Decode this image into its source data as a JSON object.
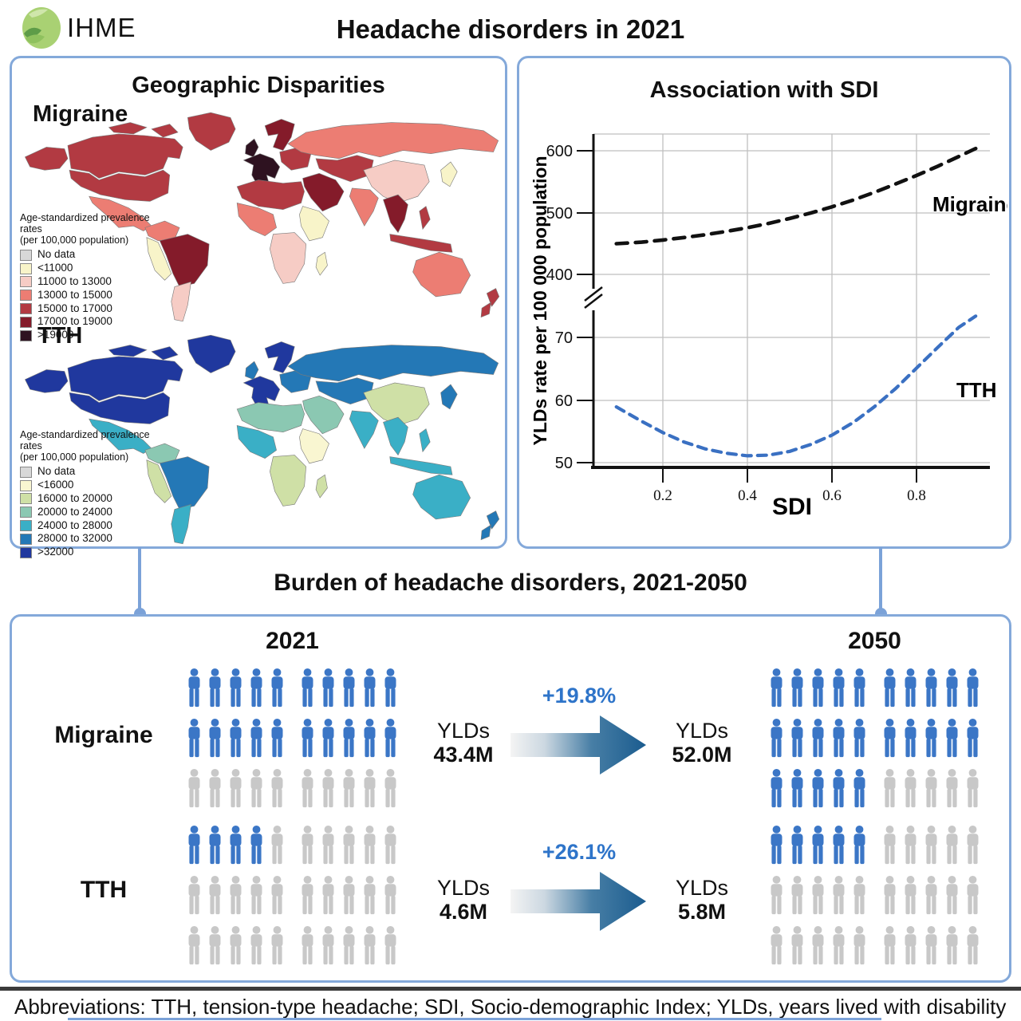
{
  "header": {
    "logo_text": "IHME",
    "title": "Headache disorders in 2021"
  },
  "geo_panel": {
    "title": "Geographic Disparities",
    "migraine": {
      "label": "Migraine",
      "legend_title_line1": "Age-standardized prevalence rates",
      "legend_title_line2": "(per 100,000 population)",
      "legend": [
        {
          "label": "No data",
          "color": "#d8d8d8"
        },
        {
          "label": "<11000",
          "color": "#f8f4c9"
        },
        {
          "label": "11000 to 13000",
          "color": "#f6ccc5"
        },
        {
          "label": "13000 to 15000",
          "color": "#ec7d73"
        },
        {
          "label": "15000 to 17000",
          "color": "#b23a42"
        },
        {
          "label": "17000 to 19000",
          "color": "#841b2a"
        },
        {
          "label": ">19000",
          "color": "#2e1220"
        }
      ],
      "fills": {
        "alaska": "#b23a42",
        "canada": "#b23a42",
        "greenland": "#b23a42",
        "usa": "#b23a42",
        "mexico": "#ec7d73",
        "colombia": "#ec7d73",
        "peru": "#f8f4c9",
        "brazil": "#841b2a",
        "argentina": "#f6ccc5",
        "uk": "#2e1220",
        "west_europe": "#2e1220",
        "nordic": "#841b2a",
        "east_europe": "#b23a42",
        "russia": "#ec7d73",
        "central_asia": "#b23a42",
        "middle_east": "#841b2a",
        "north_africa": "#b23a42",
        "west_africa": "#ec7d73",
        "east_africa": "#f8f4c9",
        "south_africa": "#f6ccc5",
        "madagascar": "#f8f4c9",
        "china": "#f6ccc5",
        "india": "#ec7d73",
        "se_asia": "#841b2a",
        "indonesia": "#b23a42",
        "japan": "#f8f4c9",
        "australia": "#ec7d73",
        "new_zealand": "#b23a42"
      }
    },
    "tth": {
      "label": "TTH",
      "legend_title_line1": "Age-standardized prevalence rates",
      "legend_title_line2": "(per 100,000 population)",
      "legend": [
        {
          "label": "No data",
          "color": "#d8d8d8"
        },
        {
          "label": "<16000",
          "color": "#f9f6d1"
        },
        {
          "label": "16000 to 20000",
          "color": "#cfe0a6"
        },
        {
          "label": "20000 to 24000",
          "color": "#8bc8b2"
        },
        {
          "label": "24000 to 28000",
          "color": "#3aafc6"
        },
        {
          "label": "28000 to 32000",
          "color": "#2478b6"
        },
        {
          "label": ">32000",
          "color": "#20389e"
        }
      ],
      "fills": {
        "alaska": "#20389e",
        "canada": "#20389e",
        "greenland": "#20389e",
        "usa": "#20389e",
        "mexico": "#3aafc6",
        "colombia": "#8bc8b2",
        "peru": "#cfe0a6",
        "brazil": "#2478b6",
        "argentina": "#3aafc6",
        "uk": "#2478b6",
        "west_europe": "#20389e",
        "nordic": "#20389e",
        "east_europe": "#2478b6",
        "russia": "#2478b6",
        "central_asia": "#2478b6",
        "middle_east": "#8bc8b2",
        "north_africa": "#8bc8b2",
        "west_africa": "#3aafc6",
        "east_africa": "#f9f6d1",
        "south_africa": "#cfe0a6",
        "madagascar": "#cfe0a6",
        "china": "#cfe0a6",
        "india": "#3aafc6",
        "se_asia": "#3aafc6",
        "indonesia": "#3aafc6",
        "japan": "#2478b6",
        "australia": "#3aafc6",
        "new_zealand": "#2478b6"
      }
    }
  },
  "chart_data": {
    "type": "line",
    "title": "Association with SDI",
    "xlabel": "SDI",
    "ylabel": "YLDs rate per 100 000 population",
    "x_tick_labels": [
      "0.2",
      "0.4",
      "0.6",
      "0.8"
    ],
    "y_tick_labels_upper": [
      "600",
      "500",
      "400"
    ],
    "y_tick_labels_lower": [
      "70",
      "60",
      "50"
    ],
    "axis_break": true,
    "x_range": [
      0.09,
      0.94
    ],
    "grid": true,
    "series": [
      {
        "name": "Migraine",
        "color": "#111111",
        "style": "dashed",
        "x": [
          0.09,
          0.15,
          0.2,
          0.25,
          0.3,
          0.35,
          0.4,
          0.45,
          0.5,
          0.55,
          0.6,
          0.65,
          0.7,
          0.75,
          0.8,
          0.85,
          0.9,
          0.94
        ],
        "y": [
          450,
          452.5,
          456,
          460,
          464.5,
          470,
          476,
          483,
          491,
          500,
          510,
          521,
          533.5,
          547,
          561,
          576,
          592,
          605
        ]
      },
      {
        "name": "TTH",
        "color": "#3a70c2",
        "style": "dashed",
        "x": [
          0.09,
          0.15,
          0.2,
          0.25,
          0.3,
          0.35,
          0.4,
          0.45,
          0.5,
          0.55,
          0.6,
          0.65,
          0.7,
          0.75,
          0.8,
          0.85,
          0.9,
          0.94
        ],
        "y": [
          58.9,
          56.6,
          54.8,
          53.3,
          52.2,
          51.5,
          51.1,
          51.2,
          51.8,
          52.9,
          54.4,
          56.4,
          58.9,
          61.8,
          65.1,
          68.4,
          71.6,
          73.4
        ]
      }
    ]
  },
  "burden_panel": {
    "title": "Burden of headache disorders, 2021-2050",
    "col_2021": "2021",
    "col_2050": "2050",
    "person_colors": {
      "active": "#3b76c6",
      "inactive": "#c8c8c8"
    },
    "pct_color": "#2e74c9",
    "rows": [
      {
        "label": "Migraine",
        "ylds_label": "YLDs",
        "value_2021": "43.4M",
        "value_2050": "52.0M",
        "pct": "+19.8%",
        "icons_total": 30,
        "icons_2021_active": 20,
        "icons_2050_active": 25
      },
      {
        "label": "TTH",
        "ylds_label": "YLDs",
        "value_2021": "4.6M",
        "value_2050": "5.8M",
        "pct": "+26.1%",
        "icons_total": 30,
        "icons_2021_active": 4,
        "icons_2050_active": 5
      }
    ]
  },
  "footer": {
    "text": "Abbreviations: TTH, tension-type headache; SDI, Socio-demographic Index; YLDs, years lived with disability"
  }
}
